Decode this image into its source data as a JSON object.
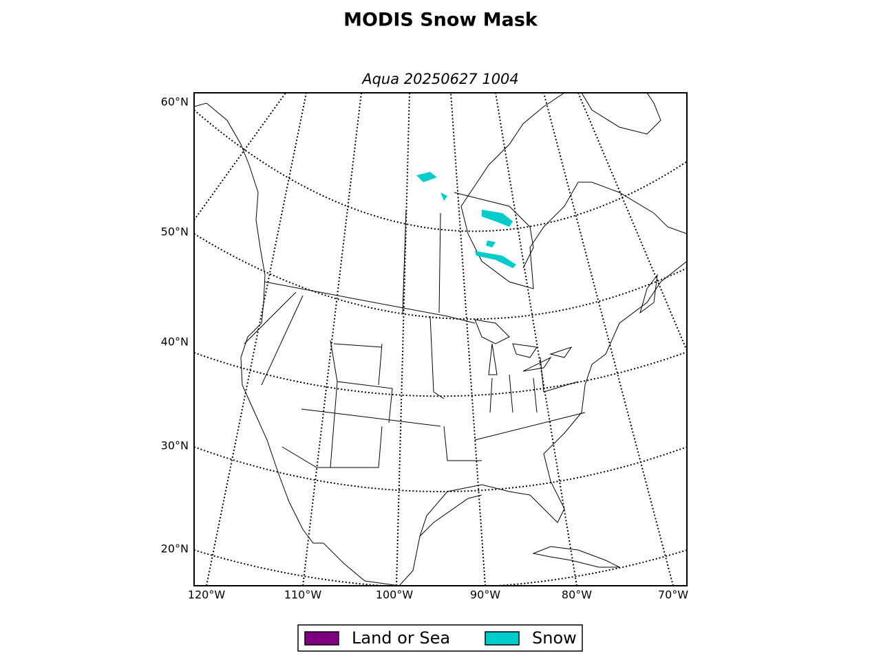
{
  "title": "MODIS Snow Mask",
  "subtitle": "Aqua 20250627 1004",
  "lat_labels": [
    "60°N",
    "50°N",
    "40°N",
    "30°N",
    "20°N"
  ],
  "lon_labels": [
    "120°W",
    "110°W",
    "100°W",
    "90°W",
    "80°W",
    "70°W"
  ],
  "legend": [
    {
      "label": "Land or Sea",
      "color": "#800080"
    },
    {
      "label": "Snow",
      "color": "#00cccc"
    }
  ]
}
